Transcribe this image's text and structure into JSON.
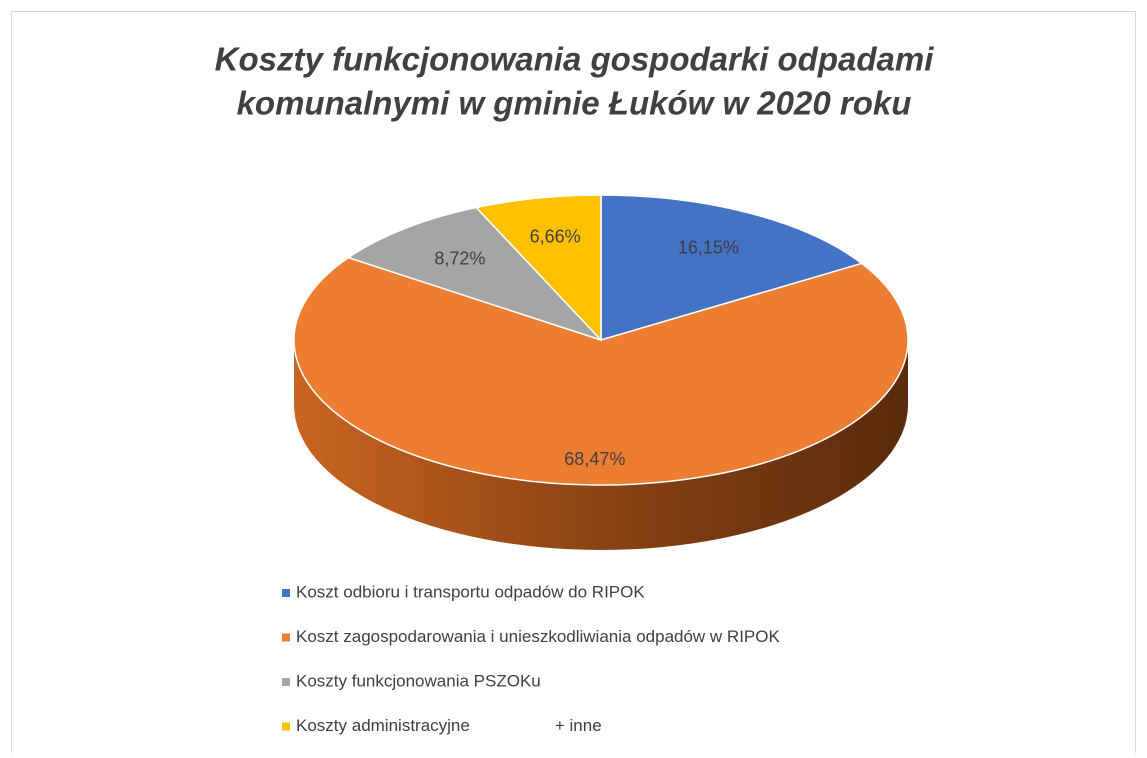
{
  "chart_data": {
    "type": "pie",
    "title": [
      "Koszty funkcjonowania gospodarki odpadami",
      "komunalnymi w gminie Łuków w 2020 roku"
    ],
    "categories": [
      "Koszt odbioru i transportu odpadów do RIPOK",
      "Koszt zagospodarowania i unieszkodliwiania odpadów w RIPOK",
      "Koszty funkcjonowania PSZOKu",
      "Koszty administracyjne                  + inne"
    ],
    "values": [
      16.15,
      68.47,
      8.72,
      6.66
    ],
    "value_labels": [
      "16,15%",
      "68,47%",
      "8,72%",
      "6,66%"
    ],
    "colors": [
      "#4472c4",
      "#ed7d31",
      "#a5a5a5",
      "#ffc000"
    ],
    "legend": "bottom"
  }
}
